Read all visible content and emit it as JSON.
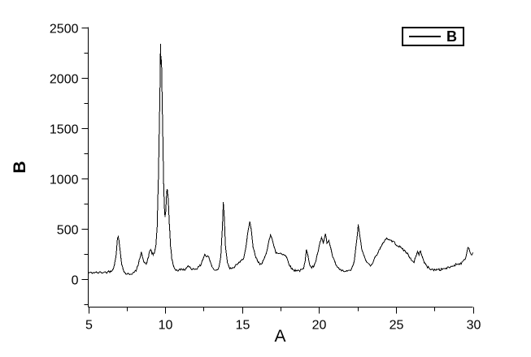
{
  "figure": {
    "background": "#ffffff",
    "ink_color": "#000000"
  },
  "chart_data": {
    "type": "line",
    "title": "",
    "xlabel": "A",
    "ylabel": "B",
    "grid": false,
    "legend": {
      "position": "top-right",
      "entries": [
        {
          "label": "B",
          "color": "#000000"
        }
      ]
    },
    "x_axis": {
      "min": 5,
      "max": 30,
      "major_ticks": [
        5,
        10,
        15,
        20,
        25,
        30
      ],
      "minor_ticks": [
        7.5,
        12.5,
        17.5,
        22.5,
        27.5
      ]
    },
    "y_axis": {
      "min": -280,
      "max": 2500,
      "major_ticks": [
        0,
        500,
        1000,
        1500,
        2000,
        2500
      ],
      "minor_ticks": [
        -250,
        250,
        750,
        1250,
        1750,
        2250
      ]
    },
    "line_color": "#000000",
    "noise_amplitude": 11,
    "series": [
      {
        "name": "B",
        "points": [
          [
            5.0,
            60
          ],
          [
            5.2,
            58
          ],
          [
            5.4,
            62
          ],
          [
            5.6,
            58
          ],
          [
            5.8,
            63
          ],
          [
            6.0,
            62
          ],
          [
            6.2,
            66
          ],
          [
            6.4,
            72
          ],
          [
            6.55,
            85
          ],
          [
            6.7,
            130
          ],
          [
            6.8,
            230
          ],
          [
            6.9,
            390
          ],
          [
            6.95,
            420
          ],
          [
            7.0,
            375
          ],
          [
            7.08,
            270
          ],
          [
            7.18,
            150
          ],
          [
            7.28,
            85
          ],
          [
            7.4,
            55
          ],
          [
            7.55,
            45
          ],
          [
            7.7,
            48
          ],
          [
            7.85,
            52
          ],
          [
            8.0,
            62
          ],
          [
            8.12,
            85
          ],
          [
            8.25,
            135
          ],
          [
            8.38,
            220
          ],
          [
            8.45,
            275
          ],
          [
            8.52,
            230
          ],
          [
            8.62,
            165
          ],
          [
            8.72,
            148
          ],
          [
            8.82,
            160
          ],
          [
            8.92,
            220
          ],
          [
            9.0,
            285
          ],
          [
            9.06,
            290
          ],
          [
            9.14,
            255
          ],
          [
            9.22,
            235
          ],
          [
            9.3,
            255
          ],
          [
            9.4,
            330
          ],
          [
            9.48,
            520
          ],
          [
            9.56,
            1000
          ],
          [
            9.62,
            1500
          ],
          [
            9.66,
            1850
          ],
          [
            9.7,
            2330
          ],
          [
            9.73,
            2120
          ],
          [
            9.76,
            2170
          ],
          [
            9.8,
            1840
          ],
          [
            9.85,
            1390
          ],
          [
            9.9,
            960
          ],
          [
            9.95,
            710
          ],
          [
            9.99,
            610
          ],
          [
            10.04,
            680
          ],
          [
            10.1,
            860
          ],
          [
            10.14,
            880
          ],
          [
            10.2,
            800
          ],
          [
            10.27,
            550
          ],
          [
            10.35,
            330
          ],
          [
            10.43,
            205
          ],
          [
            10.52,
            135
          ],
          [
            10.65,
            95
          ],
          [
            10.8,
            82
          ],
          [
            10.95,
            88
          ],
          [
            11.1,
            95
          ],
          [
            11.25,
            88
          ],
          [
            11.4,
            105
          ],
          [
            11.55,
            125
          ],
          [
            11.7,
            100
          ],
          [
            11.85,
            95
          ],
          [
            12.0,
            100
          ],
          [
            12.15,
            110
          ],
          [
            12.3,
            135
          ],
          [
            12.45,
            195
          ],
          [
            12.58,
            245
          ],
          [
            12.68,
            215
          ],
          [
            12.78,
            230
          ],
          [
            12.9,
            185
          ],
          [
            13.05,
            115
          ],
          [
            13.2,
            90
          ],
          [
            13.35,
            85
          ],
          [
            13.5,
            115
          ],
          [
            13.62,
            230
          ],
          [
            13.72,
            520
          ],
          [
            13.78,
            760
          ],
          [
            13.84,
            620
          ],
          [
            13.92,
            320
          ],
          [
            14.05,
            150
          ],
          [
            14.2,
            105
          ],
          [
            14.35,
            95
          ],
          [
            14.5,
            115
          ],
          [
            14.65,
            145
          ],
          [
            14.8,
            155
          ],
          [
            14.95,
            175
          ],
          [
            15.1,
            210
          ],
          [
            15.25,
            310
          ],
          [
            15.4,
            480
          ],
          [
            15.5,
            560
          ],
          [
            15.6,
            480
          ],
          [
            15.72,
            310
          ],
          [
            15.85,
            230
          ],
          [
            16.0,
            175
          ],
          [
            16.15,
            148
          ],
          [
            16.3,
            160
          ],
          [
            16.45,
            195
          ],
          [
            16.6,
            265
          ],
          [
            16.75,
            390
          ],
          [
            16.85,
            440
          ],
          [
            16.95,
            395
          ],
          [
            17.08,
            310
          ],
          [
            17.2,
            260
          ],
          [
            17.35,
            250
          ],
          [
            17.5,
            255
          ],
          [
            17.65,
            245
          ],
          [
            17.8,
            235
          ],
          [
            17.95,
            195
          ],
          [
            18.1,
            130
          ],
          [
            18.25,
            95
          ],
          [
            18.4,
            82
          ],
          [
            18.55,
            85
          ],
          [
            18.7,
            80
          ],
          [
            18.85,
            85
          ],
          [
            19.0,
            100
          ],
          [
            19.1,
            175
          ],
          [
            19.18,
            300
          ],
          [
            19.28,
            240
          ],
          [
            19.4,
            130
          ],
          [
            19.52,
            105
          ],
          [
            19.65,
            125
          ],
          [
            19.8,
            180
          ],
          [
            19.95,
            280
          ],
          [
            20.08,
            360
          ],
          [
            20.16,
            410
          ],
          [
            20.28,
            345
          ],
          [
            20.42,
            445
          ],
          [
            20.52,
            355
          ],
          [
            20.64,
            375
          ],
          [
            20.78,
            290
          ],
          [
            20.9,
            210
          ],
          [
            21.05,
            155
          ],
          [
            21.2,
            110
          ],
          [
            21.4,
            85
          ],
          [
            21.6,
            75
          ],
          [
            21.8,
            72
          ],
          [
            22.0,
            80
          ],
          [
            22.15,
            105
          ],
          [
            22.3,
            180
          ],
          [
            22.45,
            380
          ],
          [
            22.55,
            530
          ],
          [
            22.65,
            430
          ],
          [
            22.78,
            300
          ],
          [
            22.92,
            225
          ],
          [
            23.08,
            170
          ],
          [
            23.22,
            145
          ],
          [
            23.35,
            135
          ],
          [
            23.5,
            165
          ],
          [
            23.65,
            210
          ],
          [
            23.8,
            255
          ],
          [
            23.95,
            295
          ],
          [
            24.1,
            330
          ],
          [
            24.25,
            380
          ],
          [
            24.4,
            405
          ],
          [
            24.55,
            385
          ],
          [
            24.7,
            380
          ],
          [
            24.85,
            365
          ],
          [
            25.0,
            345
          ],
          [
            25.15,
            325
          ],
          [
            25.3,
            310
          ],
          [
            25.45,
            295
          ],
          [
            25.6,
            270
          ],
          [
            25.75,
            250
          ],
          [
            25.9,
            215
          ],
          [
            26.05,
            170
          ],
          [
            26.18,
            160
          ],
          [
            26.3,
            230
          ],
          [
            26.4,
            270
          ],
          [
            26.5,
            240
          ],
          [
            26.6,
            280
          ],
          [
            26.7,
            220
          ],
          [
            26.85,
            160
          ],
          [
            27.0,
            125
          ],
          [
            27.15,
            105
          ],
          [
            27.3,
            95
          ],
          [
            27.45,
            85
          ],
          [
            27.6,
            90
          ],
          [
            27.75,
            95
          ],
          [
            27.9,
            88
          ],
          [
            28.05,
            100
          ],
          [
            28.2,
            98
          ],
          [
            28.35,
            108
          ],
          [
            28.5,
            115
          ],
          [
            28.65,
            122
          ],
          [
            28.8,
            135
          ],
          [
            28.95,
            145
          ],
          [
            29.1,
            148
          ],
          [
            29.25,
            155
          ],
          [
            29.4,
            175
          ],
          [
            29.55,
            215
          ],
          [
            29.68,
            310
          ],
          [
            29.75,
            300
          ],
          [
            29.82,
            260
          ],
          [
            29.9,
            235
          ],
          [
            30.0,
            260
          ]
        ]
      }
    ]
  }
}
